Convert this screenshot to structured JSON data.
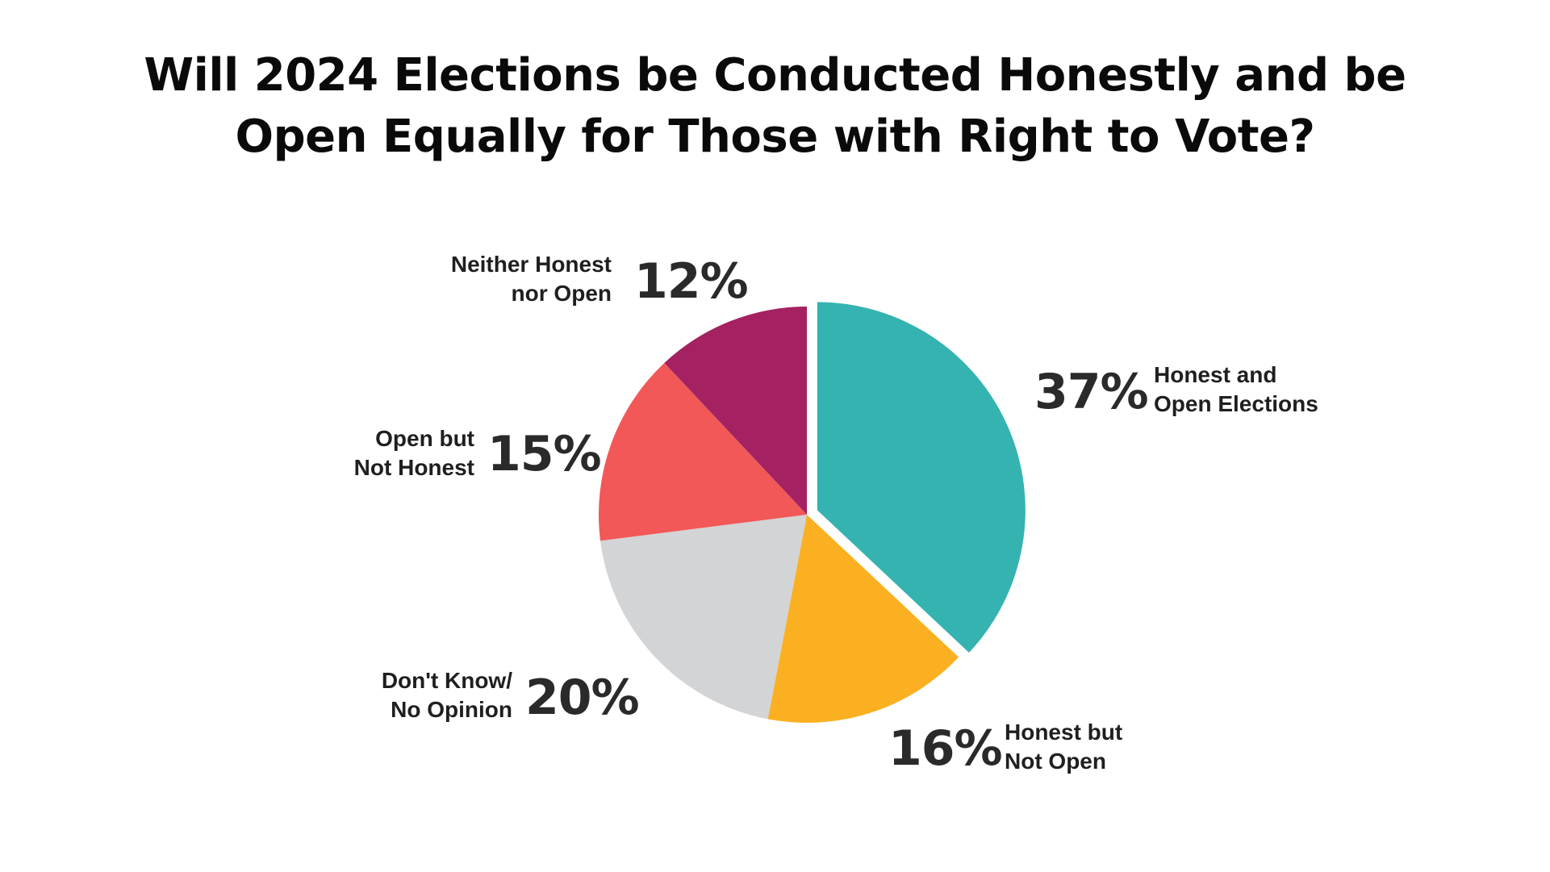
{
  "title_lines": [
    "Will 2024 Elections be Conducted Honestly and be",
    "Open Equally for Those with Right to Vote?"
  ],
  "chart_data": {
    "type": "pie",
    "title": "Will 2024 Elections be Conducted Honestly and be Open Equally for Those with Right to Vote?",
    "slices": [
      {
        "label_lines": [
          "Honest and",
          "Open Elections"
        ],
        "value": 37,
        "value_label": "37%",
        "color": "#34b3b1",
        "exploded": true
      },
      {
        "label_lines": [
          "Honest but",
          "Not Open"
        ],
        "value": 16,
        "value_label": "16%",
        "color": "#fbb021"
      },
      {
        "label_lines": [
          "Don't Know/",
          "No Opinion"
        ],
        "value": 20,
        "value_label": "20%",
        "color": "#d3d4d6"
      },
      {
        "label_lines": [
          "Open but",
          "Not Honest"
        ],
        "value": 15,
        "value_label": "15%",
        "color": "#f15857"
      },
      {
        "label_lines": [
          "Neither Honest",
          "nor Open"
        ],
        "value": 12,
        "value_label": "12%",
        "color": "#a42262"
      }
    ]
  }
}
